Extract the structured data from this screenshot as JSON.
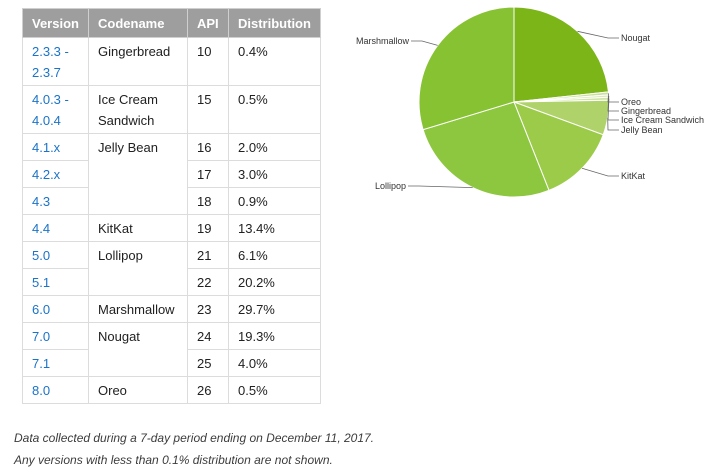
{
  "table": {
    "headers": [
      "Version",
      "Codename",
      "API",
      "Distribution"
    ],
    "rows": [
      {
        "version": "2.3.3 -\n2.3.7",
        "codename": "Gingerbread",
        "api": "10",
        "distribution": "0.4%"
      },
      {
        "version": "4.0.3 -\n4.0.4",
        "codename": "Ice Cream\nSandwich",
        "api": "15",
        "distribution": "0.5%"
      },
      {
        "version": "4.1.x",
        "codename": "Jelly Bean",
        "api": "16",
        "distribution": "2.0%"
      },
      {
        "version": "4.2.x",
        "codename": "",
        "api": "17",
        "distribution": "3.0%"
      },
      {
        "version": "4.3",
        "codename": "",
        "api": "18",
        "distribution": "0.9%"
      },
      {
        "version": "4.4",
        "codename": "KitKat",
        "api": "19",
        "distribution": "13.4%"
      },
      {
        "version": "5.0",
        "codename": "Lollipop",
        "api": "21",
        "distribution": "6.1%"
      },
      {
        "version": "5.1",
        "codename": "",
        "api": "22",
        "distribution": "20.2%"
      },
      {
        "version": "6.0",
        "codename": "Marshmallow",
        "api": "23",
        "distribution": "29.7%"
      },
      {
        "version": "7.0",
        "codename": "Nougat",
        "api": "24",
        "distribution": "19.3%"
      },
      {
        "version": "7.1",
        "codename": "",
        "api": "25",
        "distribution": "4.0%"
      },
      {
        "version": "8.0",
        "codename": "Oreo",
        "api": "26",
        "distribution": "0.5%"
      }
    ]
  },
  "chart_data": {
    "type": "pie",
    "title": "",
    "start": "top, clockwise",
    "slices": [
      {
        "label": "Nougat",
        "value": 23.3,
        "color": "#7cb518"
      },
      {
        "label": "Oreo",
        "value": 0.5,
        "color": "#c9e09a"
      },
      {
        "label": "Gingerbread",
        "value": 0.4,
        "color": "#dbeab7"
      },
      {
        "label": "Ice Cream Sandwich",
        "value": 0.5,
        "color": "#cfe4a6"
      },
      {
        "label": "Jelly Bean",
        "value": 5.9,
        "color": "#afd36a"
      },
      {
        "label": "KitKat",
        "value": 13.4,
        "color": "#9ccb49"
      },
      {
        "label": "Lollipop",
        "value": 26.3,
        "color": "#8dc63f"
      },
      {
        "label": "Marshmallow",
        "value": 29.7,
        "color": "#86c232"
      }
    ]
  },
  "footnote": {
    "line1": "Data collected during a 7-day period ending on December 11, 2017.",
    "line2": "Any versions with less than 0.1% distribution are not shown."
  }
}
